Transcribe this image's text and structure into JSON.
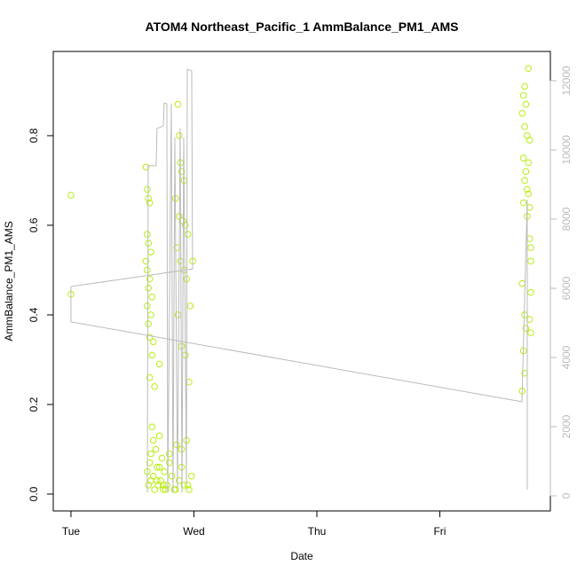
{
  "chart_data": {
    "type": "scatter",
    "title": "ATOM4 Northeast_Pacific_1 AmmBalance_PM1_AMS",
    "xlabel": "Date",
    "ylabel": "AmmBalance_PM1_AMS",
    "xlim": [
      -0.144,
      3.899
    ],
    "xticks": [
      {
        "value": 0,
        "label": "Tue"
      },
      {
        "value": 1,
        "label": "Wed"
      },
      {
        "value": 2,
        "label": "Thu"
      },
      {
        "value": 3,
        "label": "Fri"
      }
    ],
    "ylim": [
      -0.0376,
      0.988
    ],
    "yticks": [
      {
        "value": 0,
        "label": "0.0"
      },
      0.2,
      0.4,
      0.6,
      0.8
    ],
    "y2lim": [
      -436,
      12846
    ],
    "y2ticks": [
      0,
      2000,
      4000,
      6000,
      8000,
      10000,
      12000
    ],
    "y2color": "#bbbbbb",
    "series": [
      {
        "type": "scatter",
        "color": "#b8ee10",
        "x": [
          0,
          0,
          0.61,
          0.62,
          0.63,
          0.64,
          0.62,
          0.63,
          0.65,
          0.61,
          0.62,
          0.64,
          0.63,
          0.66,
          0.62,
          0.65,
          0.63,
          0.64,
          0.67,
          0.72,
          0.66,
          0.64,
          0.68,
          0.62,
          0.63,
          0.64,
          0.65,
          0.66,
          0.67,
          0.68,
          0.69,
          0.7,
          0.71,
          0.72,
          0.73,
          0.74,
          0.75,
          0.76,
          0.78,
          0.8,
          0.82,
          0.84,
          0.86,
          0.88,
          0.9,
          0.92,
          0.94,
          0.96,
          0.98,
          0.65,
          0.7,
          0.75,
          0.8,
          0.85,
          0.9,
          0.95,
          0.67,
          0.72,
          0.77,
          0.87,
          0.88,
          0.89,
          0.9,
          0.92,
          0.85,
          0.88,
          0.91,
          0.93,
          0.95,
          0.86,
          0.89,
          0.92,
          0.94,
          0.97,
          0.87,
          0.9,
          0.93,
          0.96,
          0.99,
          3.72,
          3.69,
          3.68,
          3.7,
          3.67,
          3.69,
          3.71,
          3.73,
          3.68,
          3.72,
          3.7,
          3.69,
          3.71,
          3.72,
          3.68,
          3.73,
          3.71,
          3.73,
          3.74,
          3.74,
          3.67,
          3.74,
          3.69,
          3.73,
          3.7,
          3.74,
          3.68,
          3.69,
          3.67
        ],
        "values": [
          0.667,
          0.446,
          0.73,
          0.68,
          0.66,
          0.65,
          0.58,
          0.56,
          0.54,
          0.52,
          0.5,
          0.48,
          0.46,
          0.44,
          0.42,
          0.4,
          0.38,
          0.35,
          0.34,
          0.29,
          0.31,
          0.26,
          0.24,
          0.05,
          0.02,
          0.07,
          0.03,
          0.15,
          0.04,
          0.01,
          0.1,
          0.06,
          0.02,
          0.13,
          0.03,
          0.08,
          0.01,
          0.05,
          0.02,
          0.09,
          0.04,
          0.01,
          0.11,
          0.03,
          0.06,
          0.02,
          0.12,
          0.01,
          0.04,
          0.09,
          0.03,
          0.02,
          0.07,
          0.01,
          0.1,
          0.02,
          0.12,
          0.06,
          0.01,
          0.87,
          0.8,
          0.74,
          0.72,
          0.7,
          0.66,
          0.62,
          0.61,
          0.6,
          0.58,
          0.55,
          0.52,
          0.5,
          0.48,
          0.42,
          0.4,
          0.33,
          0.31,
          0.25,
          0.52,
          0.95,
          0.91,
          0.89,
          0.87,
          0.85,
          0.82,
          0.8,
          0.79,
          0.75,
          0.74,
          0.72,
          0.7,
          0.68,
          0.67,
          0.65,
          0.64,
          0.62,
          0.57,
          0.55,
          0.52,
          0.47,
          0.45,
          0.4,
          0.39,
          0.37,
          0.36,
          0.32,
          0.27,
          0.23
        ]
      },
      {
        "type": "line",
        "axis": "y2",
        "color": "#bbbbbb",
        "x": [
          0.621,
          0.628,
          0.693,
          0.7,
          0.751,
          0.758,
          0.78,
          0.787,
          0.816,
          0.83,
          0.845,
          0.866,
          0.888,
          0.903,
          0.917,
          0.939,
          0.946,
          0.982,
          0.989,
          0,
          0,
          3.668,
          3.711,
          3.711
        ],
        "values": [
          100,
          9540,
          9540,
          10620,
          10690,
          11360,
          11330,
          100,
          11330,
          100,
          10360,
          230,
          10620,
          100,
          10360,
          360,
          12330,
          12280,
          6560,
          6050,
          5030,
          2720,
          8560,
          180
        ]
      }
    ]
  }
}
